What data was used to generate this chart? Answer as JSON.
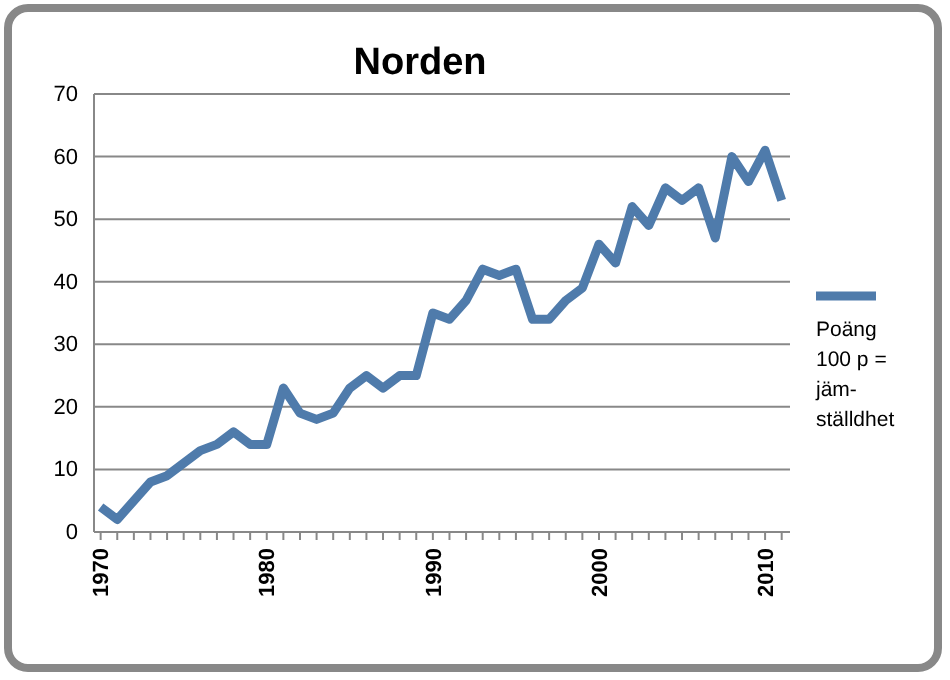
{
  "chart_data": {
    "type": "line",
    "title": "Norden",
    "x": [
      1970,
      1971,
      1972,
      1973,
      1974,
      1975,
      1976,
      1977,
      1978,
      1979,
      1980,
      1981,
      1982,
      1983,
      1984,
      1985,
      1986,
      1987,
      1988,
      1989,
      1990,
      1991,
      1992,
      1993,
      1994,
      1995,
      1996,
      1997,
      1998,
      1999,
      2000,
      2001,
      2002,
      2003,
      2004,
      2005,
      2006,
      2007,
      2008,
      2009,
      2010,
      2011
    ],
    "series": [
      {
        "name": "Poäng 100 p = jäm-ställdhet",
        "color": "#4f7bab",
        "values": [
          4,
          2,
          5,
          8,
          9,
          11,
          13,
          14,
          16,
          14,
          14,
          23,
          19,
          18,
          19,
          23,
          25,
          23,
          25,
          25,
          35,
          34,
          37,
          42,
          41,
          42,
          34,
          34,
          37,
          39,
          46,
          43,
          52,
          49,
          55,
          53,
          55,
          47,
          60,
          56,
          61,
          53
        ]
      }
    ],
    "xlim": [
      1969.6,
      2011.5
    ],
    "xticks": [
      1970,
      1980,
      1990,
      2000,
      2010
    ],
    "ylim": [
      0,
      70
    ],
    "yticks": [
      0,
      10,
      20,
      30,
      40,
      50,
      60,
      70
    ],
    "grid": "y",
    "legend": "right",
    "marker": "none",
    "line_style": "solid"
  }
}
